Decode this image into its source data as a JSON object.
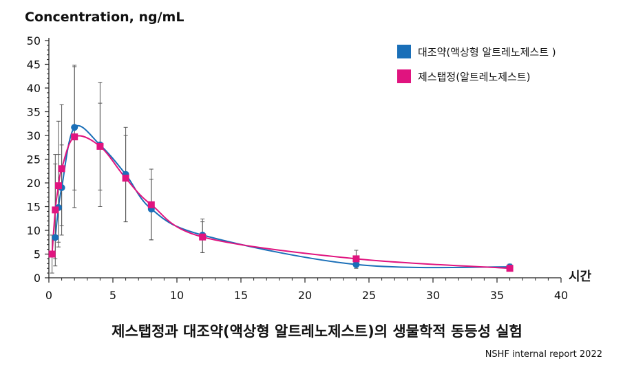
{
  "chart_data": {
    "type": "line",
    "title": "제스탭정과 대조약(액상형 알트레노제스트)의 생물학적 동등성 실험",
    "ylabel": "Concentration, ng/mL",
    "xlabel": "시간",
    "source": "NSHF internal report 2022",
    "xlim": [
      0,
      40
    ],
    "ylim": [
      0,
      50
    ],
    "xticks": [
      0,
      5,
      10,
      15,
      20,
      25,
      30,
      35,
      40
    ],
    "yticks": [
      0,
      5,
      10,
      15,
      20,
      25,
      30,
      35,
      40,
      45,
      50
    ],
    "legend_position": "top-right",
    "series": [
      {
        "name": "대조약(액상형 알트레노제스트 )",
        "color": "#1a6fb8",
        "marker": "circle",
        "points": [
          {
            "x": 0.5,
            "y": 8.5,
            "err_low": 2.5,
            "err_high": 26
          },
          {
            "x": 0.75,
            "y": 14.8,
            "err_low": 6.5,
            "err_high": 33
          },
          {
            "x": 1,
            "y": 19,
            "err_low": 9,
            "err_high": 36.5
          },
          {
            "x": 2,
            "y": 31.7,
            "err_low": 18.5,
            "err_high": 44.8
          },
          {
            "x": 4,
            "y": 28,
            "err_low": 18.5,
            "err_high": 41.2
          },
          {
            "x": 6,
            "y": 21.8,
            "err_low": 11.8,
            "err_high": 31.7
          },
          {
            "x": 8,
            "y": 14.5,
            "err_low": 8,
            "err_high": 22.9
          },
          {
            "x": 12,
            "y": 9,
            "err_low": 5.3,
            "err_high": 12.4
          },
          {
            "x": 24,
            "y": 2.8,
            "err_low": 2,
            "err_high": 4.5
          },
          {
            "x": 36,
            "y": 2.3,
            "err_low": 1.6,
            "err_high": 2.9
          }
        ]
      },
      {
        "name": "제스탭정(알트레노제스트)",
        "color": "#e0147f",
        "marker": "square",
        "points": [
          {
            "x": 0.25,
            "y": 5,
            "err_low": 1,
            "err_high": 9
          },
          {
            "x": 0.5,
            "y": 14.3,
            "err_low": 4,
            "err_high": 24
          },
          {
            "x": 0.75,
            "y": 19.4,
            "err_low": 7.5,
            "err_high": 26
          },
          {
            "x": 1,
            "y": 23,
            "err_low": 11,
            "err_high": 28
          },
          {
            "x": 2,
            "y": 29.7,
            "err_low": 14.8,
            "err_high": 44.5
          },
          {
            "x": 4,
            "y": 27.7,
            "err_low": 15,
            "err_high": 36.8
          },
          {
            "x": 6,
            "y": 21,
            "err_low": 11.8,
            "err_high": 30
          },
          {
            "x": 8,
            "y": 15.4,
            "err_low": 8,
            "err_high": 20.8
          },
          {
            "x": 12,
            "y": 8.6,
            "err_low": 5.3,
            "err_high": 11.8
          },
          {
            "x": 24,
            "y": 4,
            "err_low": 2.5,
            "err_high": 5.8
          },
          {
            "x": 36,
            "y": 2,
            "err_low": 1.4,
            "err_high": 2.6
          }
        ]
      }
    ]
  }
}
